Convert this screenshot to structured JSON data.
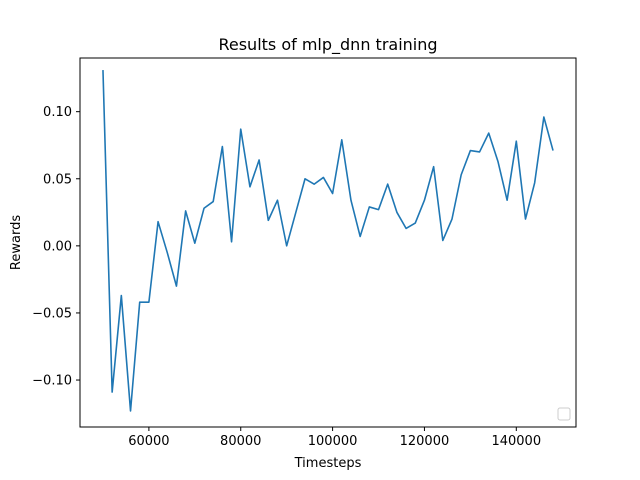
{
  "chart_data": {
    "type": "line",
    "title": "Results of mlp_dnn training",
    "xlabel": "Timesteps",
    "ylabel": "Rewards",
    "xlim": [
      45000,
      153000
    ],
    "ylim": [
      -0.135,
      0.14
    ],
    "xticks": [
      60000,
      80000,
      100000,
      120000,
      140000
    ],
    "yticks": [
      -0.1,
      -0.05,
      0.0,
      0.05,
      0.1
    ],
    "xtick_labels": [
      "60000",
      "80000",
      "100000",
      "120000",
      "140000"
    ],
    "ytick_labels": [
      "−0.10",
      "−0.05",
      "0.00",
      "0.05",
      "0.10"
    ],
    "grid": false,
    "legend": {
      "location": "lower right",
      "entries": []
    },
    "series": [
      {
        "color": "#1f77b4",
        "x": [
          50000,
          52000,
          54000,
          56000,
          58000,
          60000,
          62000,
          64000,
          66000,
          68000,
          70000,
          72000,
          74000,
          76000,
          78000,
          80000,
          82000,
          84000,
          86000,
          88000,
          90000,
          92000,
          94000,
          96000,
          98000,
          100000,
          102000,
          104000,
          106000,
          108000,
          110000,
          112000,
          114000,
          116000,
          118000,
          120000,
          122000,
          124000,
          126000,
          128000,
          130000,
          132000,
          134000,
          136000,
          138000,
          140000,
          142000,
          144000,
          146000,
          148000
        ],
        "y": [
          0.131,
          -0.109,
          -0.037,
          -0.123,
          -0.042,
          -0.042,
          0.018,
          -0.005,
          -0.03,
          0.026,
          0.002,
          0.028,
          0.033,
          0.074,
          0.003,
          0.087,
          0.044,
          0.064,
          0.019,
          0.034,
          -0.0,
          0.025,
          0.05,
          0.046,
          0.051,
          0.039,
          0.079,
          0.034,
          0.007,
          0.029,
          0.027,
          0.046,
          0.025,
          0.013,
          0.017,
          0.034,
          0.059,
          0.004,
          0.02,
          0.053,
          0.071,
          0.07,
          0.084,
          0.063,
          0.034,
          0.078,
          0.02,
          0.047,
          0.096,
          0.071
        ]
      }
    ]
  }
}
